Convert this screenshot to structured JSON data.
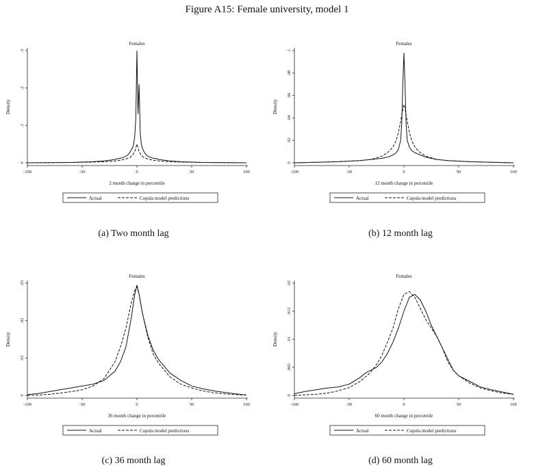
{
  "figure_title": "Figure A15: Female university, model 1",
  "chart_data": [
    {
      "type": "line",
      "caption": "(a) Two month lag",
      "title": "Females",
      "xlabel": "2 month change in percentile",
      "ylabel": "Density",
      "xlim": [
        -100,
        100
      ],
      "ylim": [
        0,
        0.3
      ],
      "xticks": [
        -100,
        -50,
        0,
        50,
        100
      ],
      "xtick_labels": [
        "-100",
        "-50",
        "0",
        "50",
        "100"
      ],
      "yticks": [
        0,
        0.1,
        0.2,
        0.3
      ],
      "ytick_labels": [
        "0",
        ".1",
        ".2",
        ".3"
      ],
      "legend": [
        "Actual",
        "Copula model predictions"
      ],
      "legend_position": "bottom",
      "series": [
        {
          "name": "Actual",
          "style": "solid",
          "x": [
            -100,
            -60,
            -40,
            -30,
            -25,
            -20,
            -18,
            -15,
            -13,
            -11,
            -9,
            -8,
            -7,
            -6,
            -5,
            -4,
            -3,
            -2,
            -1,
            0,
            1,
            2,
            3,
            4,
            5,
            6,
            7,
            8,
            9,
            11,
            13,
            15,
            18,
            20,
            25,
            30,
            40,
            60,
            100
          ],
          "y": [
            0.0,
            0.001,
            0.003,
            0.005,
            0.007,
            0.009,
            0.011,
            0.012,
            0.014,
            0.016,
            0.02,
            0.022,
            0.026,
            0.03,
            0.036,
            0.04,
            0.05,
            0.07,
            0.12,
            0.3,
            0.13,
            0.21,
            0.08,
            0.05,
            0.04,
            0.032,
            0.027,
            0.023,
            0.02,
            0.016,
            0.014,
            0.012,
            0.011,
            0.009,
            0.007,
            0.005,
            0.003,
            0.001,
            0.0
          ]
        },
        {
          "name": "Copula model predictions",
          "style": "dashed",
          "x": [
            -100,
            -60,
            -40,
            -30,
            -20,
            -15,
            -10,
            -6,
            -4,
            -2,
            -1,
            0,
            1,
            2,
            4,
            6,
            10,
            15,
            20,
            30,
            40,
            60,
            100
          ],
          "y": [
            0.0,
            0.001,
            0.002,
            0.003,
            0.005,
            0.007,
            0.01,
            0.015,
            0.02,
            0.03,
            0.04,
            0.05,
            0.04,
            0.03,
            0.02,
            0.015,
            0.01,
            0.007,
            0.005,
            0.003,
            0.002,
            0.001,
            0.0
          ]
        }
      ]
    },
    {
      "type": "line",
      "caption": "(b) 12 month lag",
      "title": "Females",
      "xlabel": "12 month change in percentile",
      "ylabel": "Density",
      "xlim": [
        -100,
        100
      ],
      "ylim": [
        0,
        0.1
      ],
      "xticks": [
        -100,
        -50,
        0,
        50,
        100
      ],
      "xtick_labels": [
        "-100",
        "-50",
        "0",
        "50",
        "100"
      ],
      "yticks": [
        0,
        0.02,
        0.04,
        0.06,
        0.08,
        0.1
      ],
      "ytick_labels": [
        "0",
        ".02",
        ".04",
        ".06",
        ".08",
        ".1"
      ],
      "legend": [
        "Actual",
        "Copula model predictions"
      ],
      "legend_position": "bottom",
      "series": [
        {
          "name": "Actual",
          "style": "solid",
          "x": [
            -100,
            -80,
            -60,
            -40,
            -30,
            -20,
            -15,
            -10,
            -7,
            -5,
            -3,
            -2,
            -1,
            0,
            1,
            2,
            3,
            5,
            7,
            10,
            15,
            20,
            30,
            40,
            60,
            80,
            100
          ],
          "y": [
            0.0,
            0.0005,
            0.001,
            0.002,
            0.003,
            0.004,
            0.005,
            0.007,
            0.009,
            0.012,
            0.02,
            0.035,
            0.07,
            0.098,
            0.07,
            0.035,
            0.02,
            0.014,
            0.011,
            0.009,
            0.007,
            0.005,
            0.003,
            0.002,
            0.001,
            0.0005,
            0.0
          ]
        },
        {
          "name": "Copula model predictions",
          "style": "dashed",
          "x": [
            -100,
            -80,
            -60,
            -40,
            -30,
            -20,
            -15,
            -10,
            -7,
            -5,
            -3,
            -1,
            0,
            1,
            3,
            5,
            7,
            10,
            15,
            20,
            30,
            40,
            60,
            80,
            100
          ],
          "y": [
            0.0,
            0.0005,
            0.001,
            0.002,
            0.003,
            0.006,
            0.009,
            0.014,
            0.02,
            0.027,
            0.037,
            0.048,
            0.052,
            0.048,
            0.037,
            0.027,
            0.02,
            0.014,
            0.009,
            0.006,
            0.003,
            0.002,
            0.001,
            0.0005,
            0.0
          ]
        }
      ]
    },
    {
      "type": "line",
      "caption": "(c) 36 month lag",
      "title": "Females",
      "xlabel": "36 month change in percentile",
      "ylabel": "Density",
      "xlim": [
        -100,
        100
      ],
      "ylim": [
        0,
        0.03
      ],
      "xticks": [
        -100,
        -50,
        0,
        50,
        100
      ],
      "xtick_labels": [
        "-100",
        "-50",
        "0",
        "50",
        "100"
      ],
      "yticks": [
        0,
        0.01,
        0.02,
        0.03
      ],
      "ytick_labels": [
        "0",
        ".01",
        ".02",
        ".03"
      ],
      "legend": [
        "Actual",
        "Copula model predictions"
      ],
      "legend_position": "bottom",
      "series": [
        {
          "name": "Actual",
          "style": "solid",
          "x": [
            -100,
            -90,
            -80,
            -70,
            -60,
            -50,
            -40,
            -30,
            -20,
            -15,
            -10,
            -5,
            -2,
            0,
            2,
            5,
            10,
            15,
            20,
            30,
            40,
            50,
            60,
            70,
            80,
            90,
            100
          ],
          "y": [
            0.0002,
            0.0005,
            0.001,
            0.0015,
            0.002,
            0.0025,
            0.003,
            0.004,
            0.0065,
            0.009,
            0.013,
            0.021,
            0.027,
            0.0295,
            0.027,
            0.022,
            0.016,
            0.012,
            0.0095,
            0.006,
            0.004,
            0.0025,
            0.0018,
            0.0012,
            0.0008,
            0.0004,
            0.0001
          ]
        },
        {
          "name": "Copula model predictions",
          "style": "dashed",
          "x": [
            -100,
            -90,
            -80,
            -70,
            -60,
            -50,
            -40,
            -30,
            -20,
            -15,
            -10,
            -5,
            -2,
            0,
            2,
            5,
            10,
            15,
            20,
            30,
            40,
            50,
            60,
            70,
            80,
            90,
            100
          ],
          "y": [
            0.0,
            0.0001,
            0.0003,
            0.0006,
            0.001,
            0.0015,
            0.0025,
            0.0045,
            0.009,
            0.013,
            0.018,
            0.025,
            0.028,
            0.029,
            0.027,
            0.022,
            0.0155,
            0.011,
            0.0085,
            0.005,
            0.003,
            0.002,
            0.0012,
            0.0007,
            0.0004,
            0.0002,
            0.0001
          ]
        }
      ]
    },
    {
      "type": "line",
      "caption": "(d) 60 month lag",
      "title": "Females",
      "xlabel": "60 month change in percentile",
      "ylabel": "Density",
      "xlim": [
        -100,
        100
      ],
      "ylim": [
        0,
        0.02
      ],
      "xticks": [
        -100,
        -50,
        0,
        50,
        100
      ],
      "xtick_labels": [
        "-100",
        "-50",
        "0",
        "50",
        "100"
      ],
      "yticks": [
        0,
        0.005,
        0.01,
        0.015,
        0.02
      ],
      "ytick_labels": [
        "0",
        ".005",
        ".01",
        ".015",
        ".02"
      ],
      "legend": [
        "Actual",
        "Copula model predictions"
      ],
      "legend_position": "bottom",
      "series": [
        {
          "name": "Actual",
          "style": "solid",
          "x": [
            -100,
            -90,
            -80,
            -70,
            -60,
            -50,
            -40,
            -35,
            -30,
            -25,
            -20,
            -15,
            -10,
            -5,
            0,
            5,
            10,
            15,
            20,
            25,
            30,
            35,
            40,
            45,
            50,
            60,
            70,
            80,
            90,
            100
          ],
          "y": [
            0.0003,
            0.0007,
            0.001,
            0.0013,
            0.0015,
            0.002,
            0.0032,
            0.004,
            0.0045,
            0.005,
            0.006,
            0.0075,
            0.0095,
            0.012,
            0.015,
            0.0175,
            0.018,
            0.017,
            0.015,
            0.0125,
            0.0105,
            0.0085,
            0.0065,
            0.0045,
            0.0035,
            0.0025,
            0.0015,
            0.001,
            0.0006,
            0.0002
          ]
        },
        {
          "name": "Copula model predictions",
          "style": "dashed",
          "x": [
            -100,
            -90,
            -80,
            -70,
            -60,
            -50,
            -40,
            -35,
            -30,
            -25,
            -20,
            -15,
            -10,
            -5,
            0,
            5,
            10,
            15,
            20,
            25,
            30,
            35,
            40,
            45,
            50,
            60,
            70,
            80,
            90,
            100
          ],
          "y": [
            0.0,
            0.0001,
            0.0002,
            0.0004,
            0.0008,
            0.0014,
            0.0025,
            0.0033,
            0.0042,
            0.0055,
            0.0072,
            0.0095,
            0.012,
            0.0155,
            0.018,
            0.0185,
            0.0175,
            0.0155,
            0.0135,
            0.012,
            0.0105,
            0.0085,
            0.006,
            0.0045,
            0.0035,
            0.0022,
            0.0013,
            0.0008,
            0.0004,
            0.0002
          ]
        }
      ]
    }
  ]
}
